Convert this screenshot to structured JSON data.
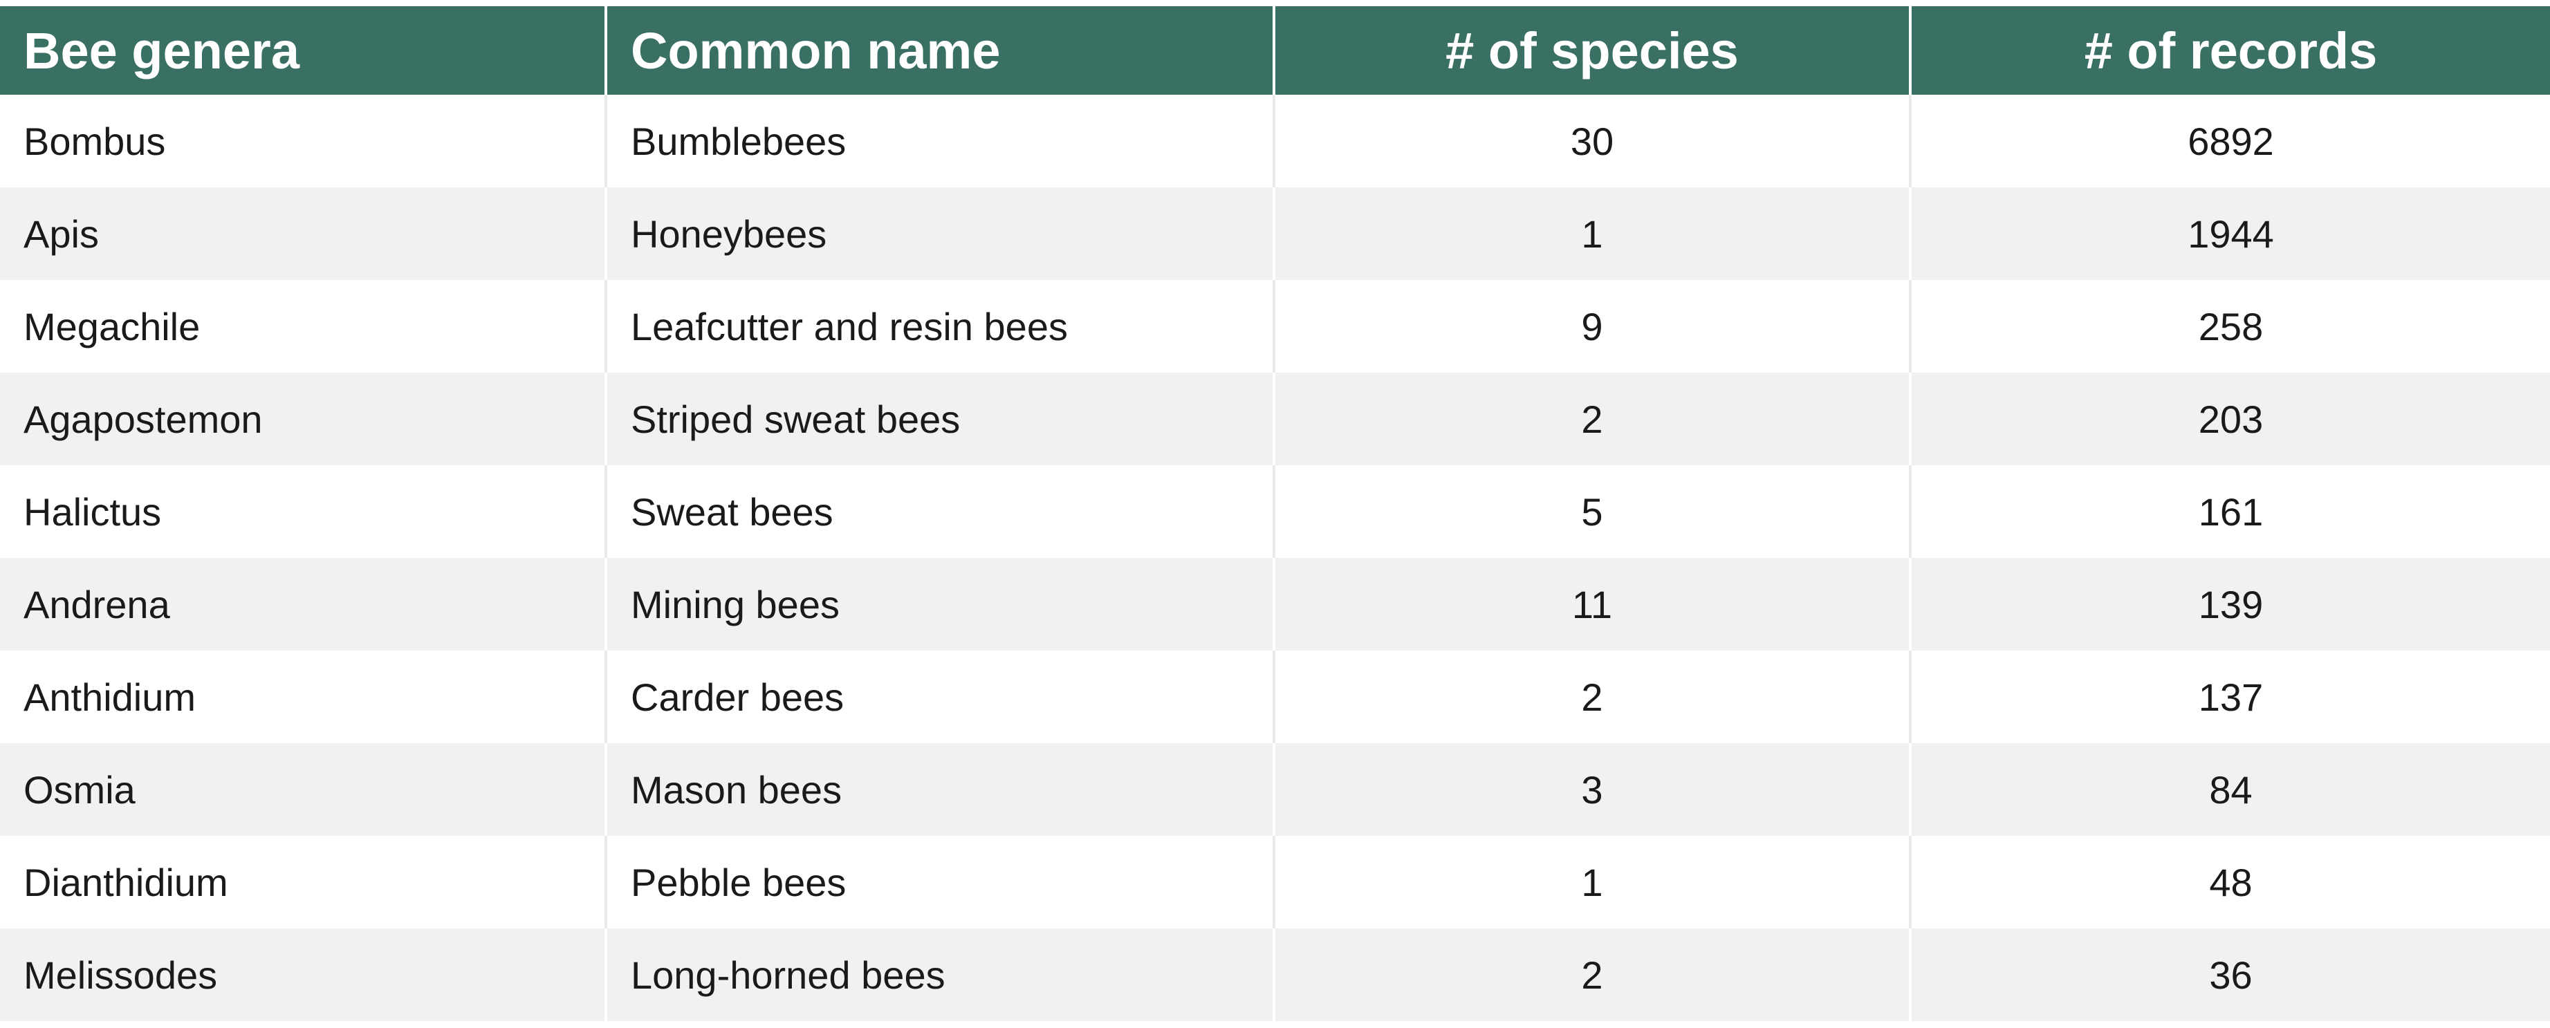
{
  "table": {
    "headers": [
      "Bee genera",
      "Common name",
      "# of species",
      "# of records"
    ],
    "rows": [
      {
        "genus": "Bombus",
        "common_name": "Bumblebees",
        "species": "30",
        "records": "6892"
      },
      {
        "genus": "Apis",
        "common_name": "Honeybees",
        "species": "1",
        "records": "1944"
      },
      {
        "genus": "Megachile",
        "common_name": "Leafcutter and resin bees",
        "species": "9",
        "records": "258"
      },
      {
        "genus": "Agapostemon",
        "common_name": "Striped sweat bees",
        "species": "2",
        "records": "203"
      },
      {
        "genus": "Halictus",
        "common_name": "Sweat bees",
        "species": "5",
        "records": "161"
      },
      {
        "genus": "Andrena",
        "common_name": "Mining bees",
        "species": "11",
        "records": "139"
      },
      {
        "genus": "Anthidium",
        "common_name": "Carder bees",
        "species": "2",
        "records": "137"
      },
      {
        "genus": "Osmia",
        "common_name": "Mason bees",
        "species": "3",
        "records": "84"
      },
      {
        "genus": "Dianthidium",
        "common_name": "Pebble bees",
        "species": "1",
        "records": "48"
      },
      {
        "genus": "Melissodes",
        "common_name": "Long-horned bees",
        "species": "2",
        "records": "36"
      }
    ]
  },
  "colors": {
    "header_background": "#3a7063",
    "header_text": "#ffffff",
    "row_alt_background": "#f1f1f1"
  }
}
